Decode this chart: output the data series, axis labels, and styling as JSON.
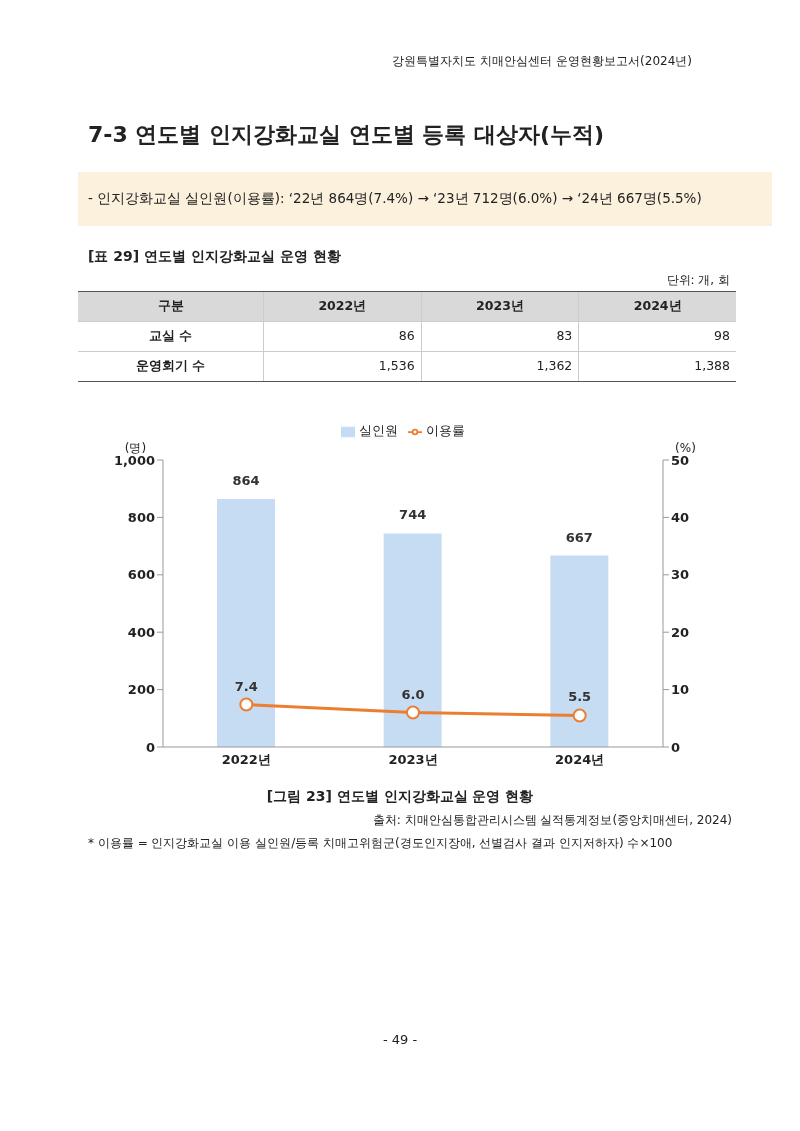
{
  "chart_data": {
    "type": "bar",
    "title": "7-3 연도별 인지강화교실 연도별 등록 대상자(누적)",
    "subtitle": "- 인지강화교실 실인원(이용률): ‘22년 864명(7.4%) → ‘23년 712명(6.0%) → ‘24년 667명(5.5%)",
    "categories": [
      "2022년",
      "2023년",
      "2024년"
    ],
    "series": [
      {
        "name": "실인원",
        "color": "#c5dcf2",
        "values": [
          864,
          744,
          667
        ],
        "value_labels": [
          "864",
          "744",
          "667"
        ]
      },
      {
        "name": "이용률",
        "type": "line",
        "axis": "y2",
        "color": "#ed7d31",
        "values": [
          7.4,
          6.0,
          5.5
        ],
        "value_labels": [
          "7.4",
          "6.0",
          "5.5"
        ]
      }
    ],
    "ylabel": "(명)",
    "y2label": "(%)",
    "ylim": [
      0,
      1000
    ],
    "yticks": [
      0,
      200,
      400,
      600,
      800,
      {
        "value": 1000,
        "label": "1,000"
      }
    ],
    "y2lim": [
      0,
      50
    ],
    "y2ticks": [
      0,
      10,
      20,
      30,
      40,
      50
    ],
    "legend": "top",
    "grid": false,
    "marker": "circle",
    "annotations": [
      "강원특별자치도 치매안심센터 운영현황보고서(2024년)",
      "[표 29] 연도별 인지강화교실 운영 현황",
      "단위: 개, 회",
      "구분",
      "2022년",
      "2023년",
      "2024년",
      "교실 수",
      "86",
      "83",
      "98",
      "운영회기 수",
      "1,536",
      "1,362",
      "1,388",
      "[그림 23] 연도별 인지강화교실 운영 현황",
      "출처: 치매안심통합관리시스템 실적통계정보(중앙치매센터, 2024)",
      "* 이용률 = 인지강화교실 이용 실인원/등록 치매고위험군(경도인지장애, 선별검사 결과 인지저하자) 수×100",
      "- 49 -"
    ]
  }
}
